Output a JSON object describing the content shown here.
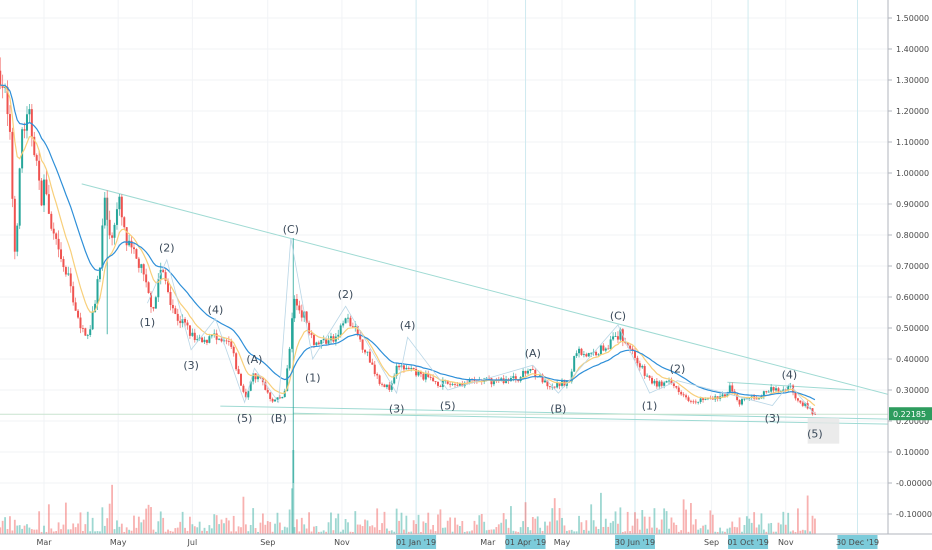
{
  "chart_data": {
    "type": "candlestick",
    "colors": {
      "up": "#26a69a",
      "down": "#ef5350",
      "ma_fast": "#f8cf7a",
      "ma_slow": "#2e8fd8",
      "trendline": "#9fdad3",
      "wave_line": "#b9d6e6",
      "last_price_bg": "#2e9c5e"
    },
    "y_axis": {
      "range": [
        -0.13,
        1.55
      ],
      "ticks": [
        "1.50000",
        "1.40000",
        "1.30000",
        "1.20000",
        "1.10000",
        "1.00000",
        "0.90000",
        "0.80000",
        "0.70000",
        "0.60000",
        "0.50000",
        "0.40000",
        "0.30000",
        "0.20000",
        "0.10000",
        "-0.00000",
        "-0.10000"
      ],
      "tick_values": [
        1.5,
        1.4,
        1.3,
        1.2,
        1.1,
        1.0,
        0.9,
        0.8,
        0.7,
        0.6,
        0.5,
        0.4,
        0.3,
        0.2,
        0.1,
        0,
        -0.1
      ]
    },
    "x_axis": {
      "ticks": [
        {
          "label": "Mar",
          "date": "2018-03-01",
          "highlight": false
        },
        {
          "label": "May",
          "date": "2018-05-01",
          "highlight": false
        },
        {
          "label": "Jul",
          "date": "2018-07-01",
          "highlight": false
        },
        {
          "label": "Sep",
          "date": "2018-09-01",
          "highlight": false
        },
        {
          "label": "Nov",
          "date": "2018-11-01",
          "highlight": false
        },
        {
          "label": "01 Jan '19",
          "date": "2019-01-01",
          "highlight": true
        },
        {
          "label": "Mar",
          "date": "2019-03-01",
          "highlight": false
        },
        {
          "label": "01 Apr '19",
          "date": "2019-04-01",
          "highlight": true
        },
        {
          "label": "May",
          "date": "2019-05-01",
          "highlight": false
        },
        {
          "label": "30 Jun '19",
          "date": "2019-06-30",
          "highlight": true
        },
        {
          "label": "Sep",
          "date": "2019-09-01",
          "highlight": false
        },
        {
          "label": "01 Oct '19",
          "date": "2019-10-01",
          "highlight": true
        },
        {
          "label": "Nov",
          "date": "2019-11-01",
          "highlight": false
        },
        {
          "label": "30 Dec '19",
          "date": "2019-12-30",
          "highlight": true
        }
      ]
    },
    "last_price": {
      "label": "0.22185",
      "value": 0.22185
    },
    "price_path": [
      [
        "2018-01-24",
        1.33
      ],
      [
        "2018-01-28",
        1.25
      ],
      [
        "2018-02-01",
        1.1
      ],
      [
        "2018-02-05",
        0.75
      ],
      [
        "2018-02-08",
        0.91
      ],
      [
        "2018-02-11",
        1.14
      ],
      [
        "2018-02-17",
        1.17
      ],
      [
        "2018-02-22",
        1.07
      ],
      [
        "2018-02-26",
        0.91
      ],
      [
        "2018-03-02",
        0.98
      ],
      [
        "2018-03-06",
        0.82
      ],
      [
        "2018-03-10",
        0.78
      ],
      [
        "2018-03-14",
        0.72
      ],
      [
        "2018-03-22",
        0.65
      ],
      [
        "2018-03-31",
        0.49
      ],
      [
        "2018-04-08",
        0.49
      ],
      [
        "2018-04-12",
        0.59
      ],
      [
        "2018-04-16",
        0.72
      ],
      [
        "2018-04-20",
        0.91
      ],
      [
        "2018-04-24",
        0.78
      ],
      [
        "2018-04-28",
        0.85
      ],
      [
        "2018-05-02",
        0.9
      ],
      [
        "2018-05-07",
        0.78
      ],
      [
        "2018-05-11",
        0.75
      ],
      [
        "2018-05-19",
        0.7
      ],
      [
        "2018-05-27",
        0.59
      ],
      [
        "2018-05-31",
        0.57
      ],
      [
        "2018-06-04",
        0.69
      ],
      [
        "2018-06-09",
        0.65
      ],
      [
        "2018-06-17",
        0.54
      ],
      [
        "2018-06-25",
        0.51
      ],
      [
        "2018-07-03",
        0.46
      ],
      [
        "2018-07-11",
        0.45
      ],
      [
        "2018-07-17",
        0.49
      ],
      [
        "2018-07-22",
        0.45
      ],
      [
        "2018-08-01",
        0.45
      ],
      [
        "2018-08-09",
        0.33
      ],
      [
        "2018-08-14",
        0.27
      ],
      [
        "2018-08-19",
        0.35
      ],
      [
        "2018-08-27",
        0.33
      ],
      [
        "2018-09-04",
        0.27
      ],
      [
        "2018-09-11",
        0.27
      ],
      [
        "2018-09-15",
        0.3
      ],
      [
        "2018-09-19",
        0.43
      ],
      [
        "2018-09-22",
        0.59
      ],
      [
        "2018-09-28",
        0.56
      ],
      [
        "2018-10-02",
        0.53
      ],
      [
        "2018-10-10",
        0.45
      ],
      [
        "2018-10-18",
        0.46
      ],
      [
        "2018-10-26",
        0.46
      ],
      [
        "2018-11-04",
        0.53
      ],
      [
        "2018-11-12",
        0.49
      ],
      [
        "2018-11-20",
        0.43
      ],
      [
        "2018-12-02",
        0.33
      ],
      [
        "2018-12-11",
        0.3
      ],
      [
        "2018-12-17",
        0.38
      ],
      [
        "2018-12-27",
        0.36
      ],
      [
        "2019-01-04",
        0.35
      ],
      [
        "2019-01-21",
        0.32
      ],
      [
        "2019-02-06",
        0.32
      ],
      [
        "2019-02-23",
        0.33
      ],
      [
        "2019-03-11",
        0.33
      ],
      [
        "2019-03-27",
        0.34
      ],
      [
        "2019-04-05",
        0.37
      ],
      [
        "2019-04-13",
        0.34
      ],
      [
        "2019-04-21",
        0.3
      ],
      [
        "2019-04-29",
        0.32
      ],
      [
        "2019-05-08",
        0.33
      ],
      [
        "2019-05-12",
        0.43
      ],
      [
        "2019-05-24",
        0.41
      ],
      [
        "2019-06-01",
        0.43
      ],
      [
        "2019-06-09",
        0.45
      ],
      [
        "2019-06-18",
        0.48
      ],
      [
        "2019-06-24",
        0.45
      ],
      [
        "2019-06-30",
        0.41
      ],
      [
        "2019-07-08",
        0.35
      ],
      [
        "2019-07-16",
        0.32
      ],
      [
        "2019-07-29",
        0.32
      ],
      [
        "2019-08-06",
        0.3
      ],
      [
        "2019-08-14",
        0.27
      ],
      [
        "2019-08-31",
        0.27
      ],
      [
        "2019-09-12",
        0.28
      ],
      [
        "2019-09-16",
        0.32
      ],
      [
        "2019-09-23",
        0.25
      ],
      [
        "2019-09-28",
        0.27
      ],
      [
        "2019-10-11",
        0.28
      ],
      [
        "2019-10-19",
        0.3
      ],
      [
        "2019-10-31",
        0.3
      ],
      [
        "2019-11-04",
        0.32
      ],
      [
        "2019-11-09",
        0.28
      ],
      [
        "2019-11-17",
        0.25
      ],
      [
        "2019-11-25",
        0.22185
      ]
    ],
    "spikes": [
      {
        "date": "2018-09-22",
        "high": 0.79,
        "low": 0.0
      },
      {
        "date": "2018-04-22",
        "high": 0.92,
        "low": 0.48
      }
    ],
    "wave_labels": [
      {
        "label": "(1)",
        "date": "2018-05-25",
        "price": 0.52,
        "pivot": 0.58
      },
      {
        "label": "(2)",
        "date": "2018-06-10",
        "price": 0.76,
        "pivot": 0.72
      },
      {
        "label": "(3)",
        "date": "2018-06-30",
        "price": 0.38,
        "pivot": 0.43
      },
      {
        "label": "(4)",
        "date": "2018-07-20",
        "price": 0.56,
        "pivot": 0.53
      },
      {
        "label": "(5)",
        "date": "2018-08-13",
        "price": 0.21,
        "pivot": 0.26
      },
      {
        "label": "(A)",
        "date": "2018-08-21",
        "price": 0.4,
        "pivot": 0.37
      },
      {
        "label": "(B)",
        "date": "2018-09-10",
        "price": 0.21,
        "pivot": 0.26
      },
      {
        "label": "(C)",
        "date": "2018-09-20",
        "price": 0.82,
        "pivot": 0.79
      },
      {
        "label": "(1)",
        "date": "2018-10-08",
        "price": 0.34,
        "pivot": 0.4
      },
      {
        "label": "(2)",
        "date": "2018-11-04",
        "price": 0.61,
        "pivot": 0.57
      },
      {
        "label": "(3)",
        "date": "2018-12-16",
        "price": 0.24,
        "pivot": 0.29
      },
      {
        "label": "(4)",
        "date": "2018-12-25",
        "price": 0.51,
        "pivot": 0.47
      },
      {
        "label": "(5)",
        "date": "2019-01-27",
        "price": 0.25,
        "pivot": 0.3
      },
      {
        "label": "(A)",
        "date": "2019-04-07",
        "price": 0.42,
        "pivot": 0.38
      },
      {
        "label": "(B)",
        "date": "2019-04-28",
        "price": 0.24,
        "pivot": 0.29
      },
      {
        "label": "(C)",
        "date": "2019-06-16",
        "price": 0.54,
        "pivot": 0.51
      },
      {
        "label": "(1)",
        "date": "2019-07-12",
        "price": 0.25,
        "pivot": 0.29
      },
      {
        "label": "(2)",
        "date": "2019-08-04",
        "price": 0.37,
        "pivot": 0.33
      },
      {
        "label": "(3)",
        "date": "2019-10-21",
        "price": 0.21,
        "pivot": 0.25
      },
      {
        "label": "(4)",
        "date": "2019-11-04",
        "price": 0.35,
        "pivot": 0.32
      },
      {
        "label": "(5)",
        "date": "2019-11-25",
        "price": 0.16,
        "pivot": 0.22
      }
    ],
    "trendlines": [
      {
        "from": [
          "2018-04-01",
          0.965
        ],
        "to": [
          "2020-01-26",
          0.284
        ]
      },
      {
        "from": [
          "2018-07-24",
          0.248
        ],
        "to": [
          "2020-01-26",
          0.206
        ]
      },
      {
        "from": [
          "2018-09-22",
          0.225
        ],
        "to": [
          "2020-01-26",
          0.19
        ]
      },
      {
        "from": [
          "2019-09-14",
          0.325
        ],
        "to": [
          "2019-12-28",
          0.3
        ]
      }
    ],
    "target_box": {
      "from": [
        "2019-11-19",
        0.21
      ],
      "to": [
        "2019-12-15",
        0.127
      ]
    }
  }
}
